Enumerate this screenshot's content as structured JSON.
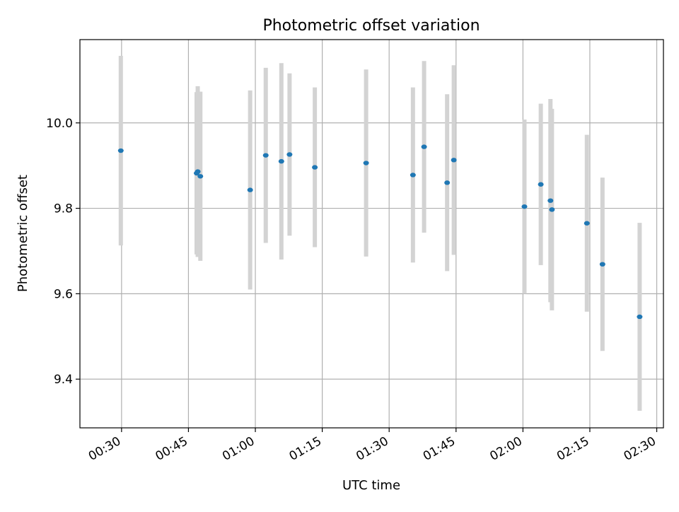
{
  "chart_data": {
    "type": "scatter",
    "title": "Photometric offset variation",
    "xlabel": "UTC time",
    "ylabel": "Photometric offset",
    "xlim": [
      "00:20:40",
      "02:31:30"
    ],
    "ylim": [
      9.286,
      10.195
    ],
    "x_ticks": [
      "00:30",
      "00:45",
      "01:00",
      "01:15",
      "01:30",
      "01:45",
      "02:00",
      "02:15",
      "02:30"
    ],
    "y_ticks": [
      9.4,
      9.6,
      9.8,
      10.0
    ],
    "y_tick_labels": [
      "9.4",
      "9.6",
      "9.8",
      "10.0"
    ],
    "grid": true,
    "colors": {
      "point": "#1f77b4",
      "errorbar": "#d3d3d3",
      "grid": "#b0b0b0"
    },
    "series": [
      {
        "points": [
          {
            "x": "00:29:50",
            "y": 9.935,
            "yerr": 0.222
          },
          {
            "x": "00:46:50",
            "y": 9.882,
            "yerr": 0.19
          },
          {
            "x": "00:47:05",
            "y": 9.886,
            "yerr": 0.2
          },
          {
            "x": "00:47:40",
            "y": 9.875,
            "yerr": 0.198
          },
          {
            "x": "00:58:50",
            "y": 9.843,
            "yerr": 0.233
          },
          {
            "x": "01:02:20",
            "y": 9.924,
            "yerr": 0.205
          },
          {
            "x": "01:05:50",
            "y": 9.91,
            "yerr": 0.23
          },
          {
            "x": "01:07:40",
            "y": 9.926,
            "yerr": 0.19
          },
          {
            "x": "01:13:20",
            "y": 9.896,
            "yerr": 0.187
          },
          {
            "x": "01:24:50",
            "y": 9.906,
            "yerr": 0.219
          },
          {
            "x": "01:35:20",
            "y": 9.878,
            "yerr": 0.205
          },
          {
            "x": "01:37:50",
            "y": 9.944,
            "yerr": 0.201
          },
          {
            "x": "01:43:00",
            "y": 9.86,
            "yerr": 0.207
          },
          {
            "x": "01:44:30",
            "y": 9.913,
            "yerr": 0.222
          },
          {
            "x": "02:00:20",
            "y": 9.804,
            "yerr": 0.204
          },
          {
            "x": "02:04:00",
            "y": 9.856,
            "yerr": 0.189
          },
          {
            "x": "02:06:10",
            "y": 9.818,
            "yerr": 0.238
          },
          {
            "x": "02:06:30",
            "y": 9.797,
            "yerr": 0.236
          },
          {
            "x": "02:14:20",
            "y": 9.765,
            "yerr": 0.207
          },
          {
            "x": "02:17:50",
            "y": 9.669,
            "yerr": 0.203
          },
          {
            "x": "02:26:10",
            "y": 9.546,
            "yerr": 0.22
          }
        ]
      }
    ]
  }
}
